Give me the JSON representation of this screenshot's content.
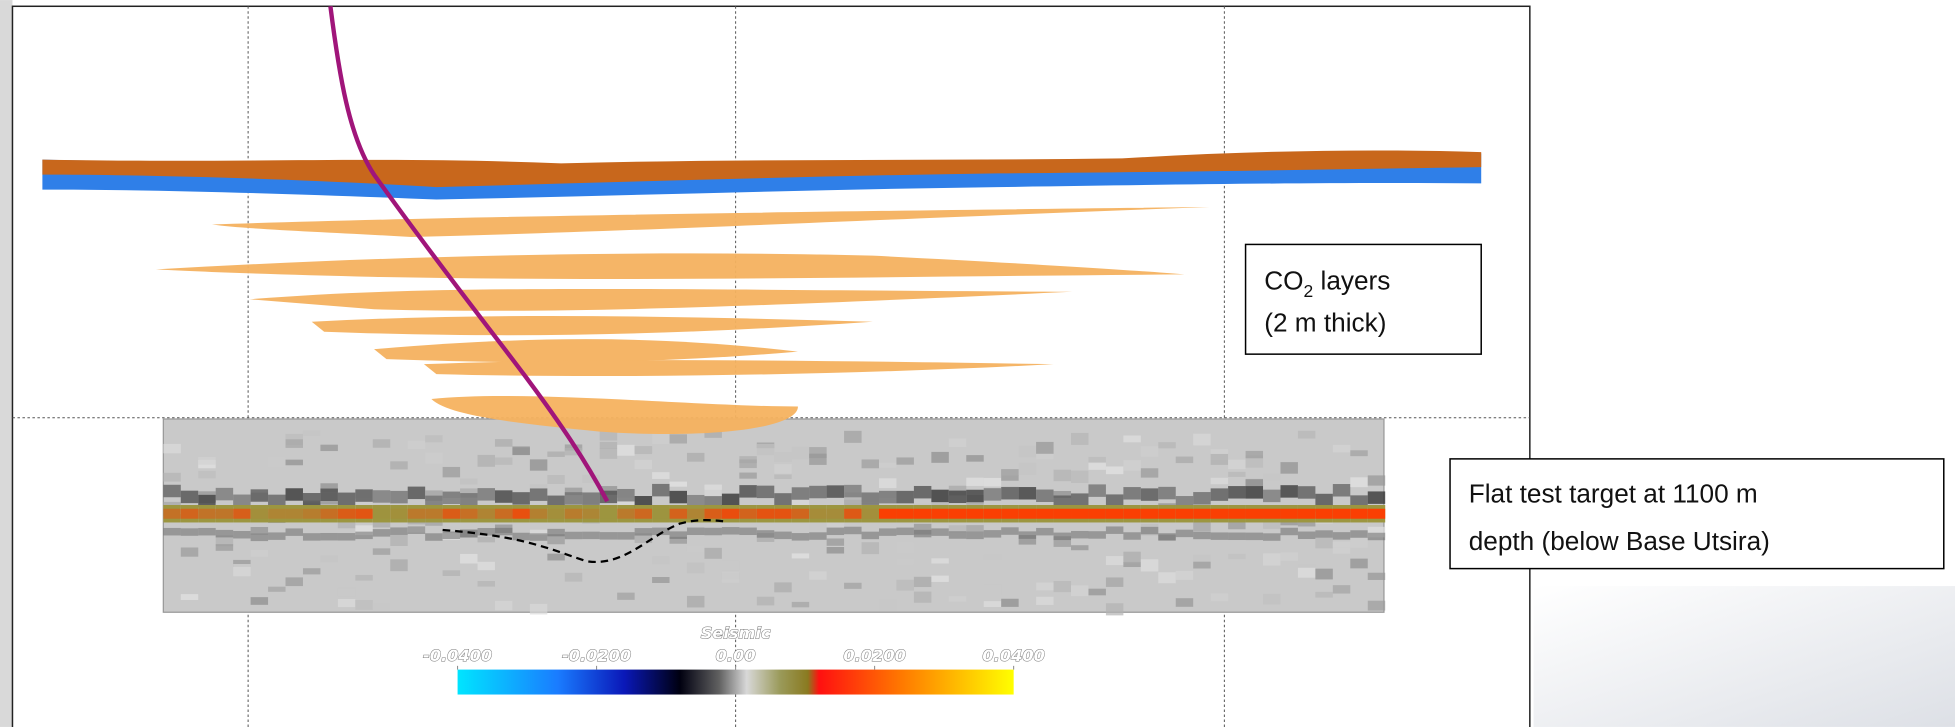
{
  "colorbar": {
    "title": "Seismic",
    "range": [
      -0.04,
      0.04
    ],
    "ticks": [
      {
        "value": -0.04,
        "label": "-0.0400"
      },
      {
        "value": -0.02,
        "label": "-0.0200"
      },
      {
        "value": 0,
        "label": "0.00"
      },
      {
        "value": 0.02,
        "label": "0.0200"
      },
      {
        "value": 0.04,
        "label": "0.0400"
      }
    ]
  },
  "annotations": [
    {
      "label_parts": [
        "CO",
        "2",
        " layers"
      ],
      "line2": "(2 m thick)"
    },
    {
      "lines": [
        "Flat test target at 1100 m",
        "depth (below Base Utsira)"
      ]
    }
  ]
}
